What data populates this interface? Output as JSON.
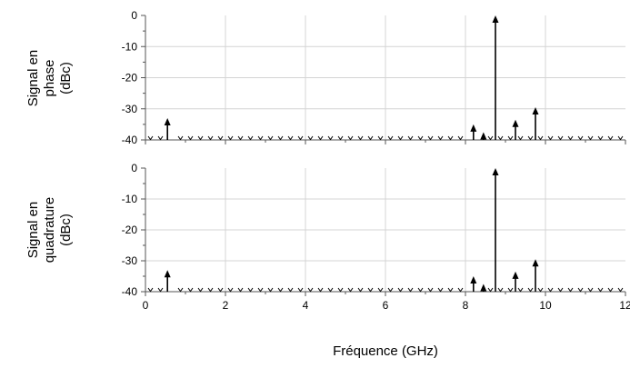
{
  "chart_data": [
    {
      "type": "stem",
      "ylabel_lines": [
        "Signal en",
        "phase",
        "(dBc)"
      ],
      "xlim": [
        0,
        12
      ],
      "ylim": [
        -40,
        0
      ],
      "grid": true,
      "floor_db": -40,
      "xticks": [
        "0",
        "2",
        "4",
        "6",
        "8",
        "10",
        "12"
      ],
      "yticks": [
        "0",
        "-10",
        "-20",
        "-30",
        "-40"
      ],
      "x_ghz": [
        0.55,
        8.2,
        8.45,
        8.75,
        9.25,
        9.75
      ],
      "y_dbc": [
        -33,
        -35,
        -37.5,
        0,
        -33.5,
        -29.5
      ]
    },
    {
      "type": "stem",
      "ylabel_lines": [
        "Signal en",
        "quadrature",
        "(dBc)"
      ],
      "xlim": [
        0,
        12
      ],
      "ylim": [
        -40,
        0
      ],
      "grid": true,
      "floor_db": -40,
      "xticks": [
        "0",
        "2",
        "4",
        "6",
        "8",
        "10",
        "12"
      ],
      "yticks": [
        "0",
        "-10",
        "-20",
        "-30",
        "-40"
      ],
      "x_ghz": [
        0.55,
        8.2,
        8.45,
        8.75,
        9.25,
        9.75
      ],
      "y_dbc": [
        -33,
        -35,
        -37.5,
        0,
        -33.5,
        -29.5
      ]
    }
  ],
  "xlabel": "Fréquence (GHz)"
}
